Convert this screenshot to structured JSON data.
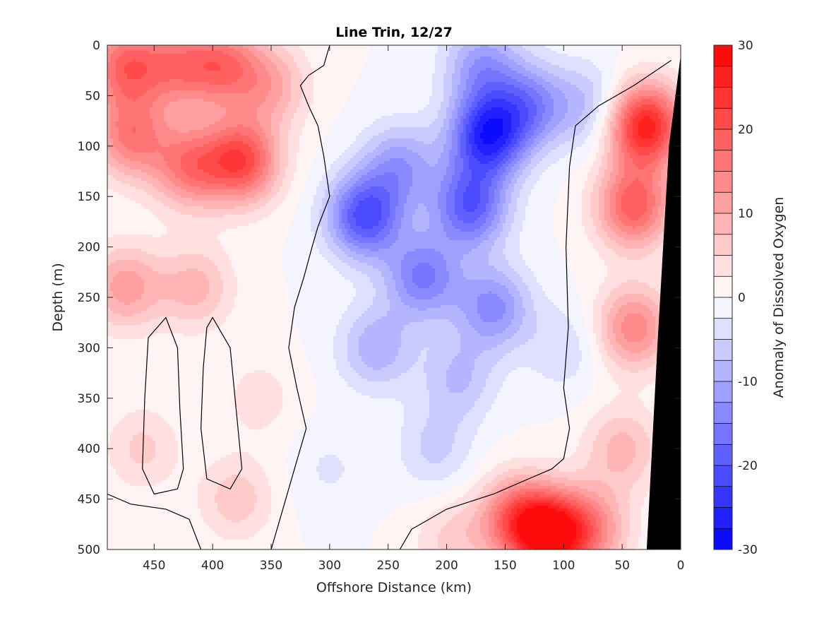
{
  "chart_data": {
    "type": "heatmap",
    "title": "Line Trin, 12/27",
    "xlabel": "Offshore Distance (km)",
    "ylabel": "Depth (m)",
    "colorbar_label": "Anomaly of Dissolved Oxygen",
    "xlim": [
      490,
      0
    ],
    "ylim": [
      0,
      500
    ],
    "x_reversed": true,
    "y_reversed": true,
    "x_ticks": [
      450,
      400,
      350,
      300,
      250,
      200,
      150,
      100,
      50,
      0
    ],
    "y_ticks": [
      0,
      50,
      100,
      150,
      200,
      250,
      300,
      350,
      400,
      450,
      500
    ],
    "colorbar_range": [
      -30,
      30
    ],
    "colorbar_ticks": [
      30,
      20,
      10,
      0,
      -10,
      -20,
      -30
    ],
    "colorbar_levels": 24,
    "colormap": {
      "negative": "#0000ff",
      "zero": "#ffffff",
      "positive": "#ff0000"
    },
    "bathymetry_color": "#000000",
    "zero_contour": true,
    "features": [
      {
        "x": 475,
        "y": 20,
        "value": 18
      },
      {
        "x": 470,
        "y": 90,
        "value": 16
      },
      {
        "x": 475,
        "y": 240,
        "value": 12
      },
      {
        "x": 420,
        "y": 120,
        "value": 16
      },
      {
        "x": 415,
        "y": 240,
        "value": 9
      },
      {
        "x": 375,
        "y": 115,
        "value": 22
      },
      {
        "x": 390,
        "y": 20,
        "value": 16
      },
      {
        "x": 350,
        "y": 40,
        "value": 10
      },
      {
        "x": 430,
        "y": 20,
        "value": 14
      },
      {
        "x": 460,
        "y": 400,
        "value": 6
      },
      {
        "x": 380,
        "y": 450,
        "value": 7
      },
      {
        "x": 360,
        "y": 350,
        "value": 4
      },
      {
        "x": 270,
        "y": 170,
        "value": -22
      },
      {
        "x": 240,
        "y": 120,
        "value": -12
      },
      {
        "x": 165,
        "y": 90,
        "value": -26
      },
      {
        "x": 180,
        "y": 160,
        "value": -20
      },
      {
        "x": 170,
        "y": 20,
        "value": -12
      },
      {
        "x": 130,
        "y": 60,
        "value": -14
      },
      {
        "x": 220,
        "y": 230,
        "value": -16
      },
      {
        "x": 160,
        "y": 260,
        "value": -14
      },
      {
        "x": 260,
        "y": 300,
        "value": -10
      },
      {
        "x": 190,
        "y": 330,
        "value": -8
      },
      {
        "x": 210,
        "y": 400,
        "value": -6
      },
      {
        "x": 80,
        "y": 60,
        "value": -8
      },
      {
        "x": 100,
        "y": 300,
        "value": -5
      },
      {
        "x": 300,
        "y": 420,
        "value": -3
      },
      {
        "x": 30,
        "y": 80,
        "value": 28
      },
      {
        "x": 40,
        "y": 160,
        "value": 20
      },
      {
        "x": 40,
        "y": 280,
        "value": 15
      },
      {
        "x": 50,
        "y": 400,
        "value": 9
      },
      {
        "x": 110,
        "y": 485,
        "value": 28
      },
      {
        "x": 140,
        "y": 470,
        "value": 18
      },
      {
        "x": 75,
        "y": 480,
        "value": 12
      },
      {
        "x": 195,
        "y": 490,
        "value": 6
      }
    ]
  }
}
